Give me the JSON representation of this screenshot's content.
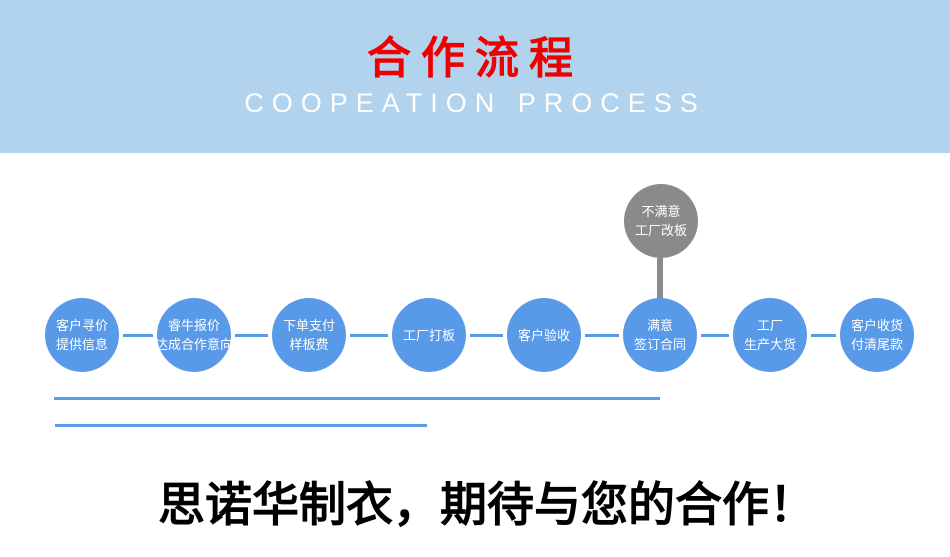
{
  "banner": {
    "title": "合作流程",
    "subtitle": "COOPEATION PROCESS",
    "bg_color": "#b2d3ee",
    "title_color": "#ee0000",
    "subtitle_color": "#ffffff"
  },
  "flow": {
    "node_color": "#5899e8",
    "branch_node_color": "#8a8a8a",
    "node_text_color": "#ffffff",
    "steps": [
      {
        "line1": "客户寻价",
        "line2": "提供信息"
      },
      {
        "line1": "睿牛报价",
        "line2": "达成合作意向"
      },
      {
        "line1": "下单支付",
        "line2": "样板费"
      },
      {
        "line1": "工厂打板",
        "line2": ""
      },
      {
        "line1": "客户验收",
        "line2": ""
      },
      {
        "line1": "满意",
        "line2": "签订合同"
      },
      {
        "line1": "工厂",
        "line2": "生产大货"
      },
      {
        "line1": "客户收货",
        "line2": "付清尾款"
      }
    ],
    "branch": {
      "line1": "不满意",
      "line2": "工厂改板"
    }
  },
  "decor": {
    "underline_color": "#5b9bea"
  },
  "footer": {
    "slogan": "思诺华制衣，期待与您的合作！",
    "color": "#000000"
  }
}
